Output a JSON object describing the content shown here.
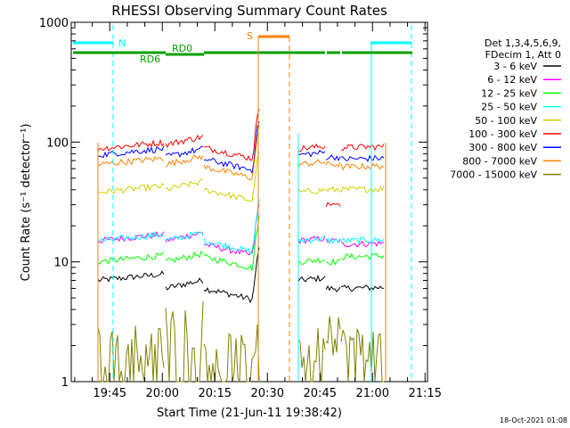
{
  "chart_data": {
    "type": "line",
    "title": "RHESSI Observing Summary Count Rates",
    "xlabel": "Start Time (21-Jun-11 19:38:42)",
    "ylabel": "Count Rate (s⁻¹ detector⁻¹)",
    "ylog": true,
    "ylim": [
      1,
      1000
    ],
    "xlim_minutes": [
      -4.7,
      97
    ],
    "y_ticks": [
      "1",
      "10",
      "100",
      "1000"
    ],
    "x_ticks": [
      {
        "label": "19:45",
        "t": 6.3
      },
      {
        "label": "20:00",
        "t": 21.3
      },
      {
        "label": "20:15",
        "t": 36.3
      },
      {
        "label": "20:30",
        "t": 51.3
      },
      {
        "label": "20:45",
        "t": 66.3
      },
      {
        "label": "21:00",
        "t": 81.3
      },
      {
        "label": "21:15",
        "t": 96.3
      }
    ],
    "legend_header": [
      "Det 1,3,4,5,6,9,",
      "FDecim 1, Att 0"
    ],
    "series": [
      {
        "name": "3 - 6 keV",
        "color": "#000000",
        "values": [
          7,
          6,
          6
        ]
      },
      {
        "name": "6 - 12 keV",
        "color": "#ff00ff",
        "values": [
          15,
          15,
          14
        ]
      },
      {
        "name": "12 - 25 keV",
        "color": "#00ff00",
        "values": [
          10,
          10,
          11
        ]
      },
      {
        "name": "25 - 50 keV",
        "color": "#00ffff",
        "values": [
          15,
          15,
          15
        ]
      },
      {
        "name": "50 - 100 keV",
        "color": "#d0d000",
        "values": [
          38,
          40,
          40
        ]
      },
      {
        "name": "100 - 300 keV",
        "color": "#ff0000",
        "values": [
          88,
          95,
          90
        ]
      },
      {
        "name": "300 - 800 keV",
        "color": "#0000ff",
        "values": [
          78,
          75,
          72
        ]
      },
      {
        "name": "800 - 7000 keV",
        "color": "#ff8000",
        "values": [
          65,
          65,
          62
        ]
      },
      {
        "name": "7000 - 15000 keV",
        "color": "#808000",
        "values": [
          2,
          3,
          2
        ]
      }
    ],
    "annotations": {
      "N": "N",
      "S": "S",
      "RD0": "RD0",
      "RD6": "RD6"
    },
    "timestamp": "18-Oct-2021 01:08"
  }
}
